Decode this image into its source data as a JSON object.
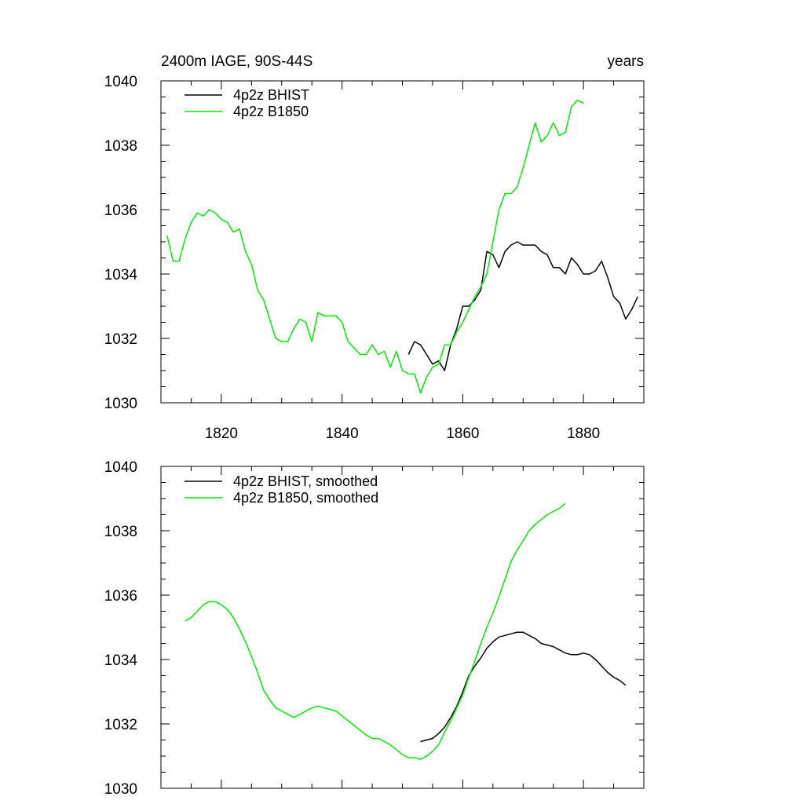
{
  "chart_data": [
    {
      "type": "line",
      "title": "2400m IAGE, 90S-44S",
      "right_title": "years",
      "xlim": [
        1810,
        1890
      ],
      "ylim": [
        1030,
        1040
      ],
      "x_ticks": [
        1820,
        1840,
        1860,
        1880
      ],
      "x_tick_labels": [
        "1820",
        "1840",
        "1860",
        "1880"
      ],
      "y_ticks": [
        1030,
        1032,
        1034,
        1036,
        1038,
        1040
      ],
      "y_tick_labels": [
        "1030",
        "1032",
        "1034",
        "1036",
        "1038",
        "1040"
      ],
      "legend_position": "top-left",
      "series": [
        {
          "name": "4p2z BHIST",
          "color": "#000000",
          "x": [
            1851,
            1852,
            1853,
            1854,
            1855,
            1856,
            1857,
            1858,
            1859,
            1860,
            1861,
            1862,
            1863,
            1864,
            1865,
            1866,
            1867,
            1868,
            1869,
            1870,
            1871,
            1872,
            1873,
            1874,
            1875,
            1876,
            1877,
            1878,
            1879,
            1880,
            1881,
            1882,
            1883,
            1884,
            1885,
            1886,
            1887,
            1888,
            1889
          ],
          "values": [
            1031.5,
            1031.9,
            1031.8,
            1031.5,
            1031.2,
            1031.3,
            1031.0,
            1031.8,
            1032.3,
            1033.0,
            1033.0,
            1033.2,
            1033.5,
            1034.7,
            1034.6,
            1034.2,
            1034.7,
            1034.9,
            1035.0,
            1034.9,
            1034.9,
            1034.9,
            1034.7,
            1034.6,
            1034.2,
            1034.2,
            1034.0,
            1034.5,
            1034.3,
            1034.0,
            1034.0,
            1034.1,
            1034.4,
            1033.9,
            1033.3,
            1033.1,
            1032.6,
            1032.9,
            1033.3
          ]
        },
        {
          "name": "4p2z B1850",
          "color": "#00ee00",
          "x": [
            1811,
            1812,
            1813,
            1814,
            1815,
            1816,
            1817,
            1818,
            1819,
            1820,
            1821,
            1822,
            1823,
            1824,
            1825,
            1826,
            1827,
            1828,
            1829,
            1830,
            1831,
            1832,
            1833,
            1834,
            1835,
            1836,
            1837,
            1838,
            1839,
            1840,
            1841,
            1842,
            1843,
            1844,
            1845,
            1846,
            1847,
            1848,
            1849,
            1850,
            1851,
            1852,
            1853,
            1854,
            1855,
            1856,
            1857,
            1858,
            1859,
            1860,
            1861,
            1862,
            1863,
            1864,
            1865,
            1866,
            1867,
            1868,
            1869,
            1870,
            1871,
            1872,
            1873,
            1874,
            1875,
            1876,
            1877,
            1878,
            1879,
            1880
          ],
          "values": [
            1035.2,
            1034.4,
            1034.4,
            1035.1,
            1035.6,
            1035.9,
            1035.8,
            1036.0,
            1035.9,
            1035.7,
            1035.6,
            1035.3,
            1035.4,
            1034.7,
            1034.3,
            1033.5,
            1033.2,
            1032.6,
            1032.0,
            1031.9,
            1031.9,
            1032.3,
            1032.6,
            1032.5,
            1031.9,
            1032.8,
            1032.7,
            1032.7,
            1032.7,
            1032.5,
            1031.9,
            1031.7,
            1031.5,
            1031.5,
            1031.8,
            1031.5,
            1031.6,
            1031.1,
            1031.6,
            1031.0,
            1030.9,
            1030.9,
            1030.3,
            1030.8,
            1031.1,
            1031.2,
            1031.8,
            1031.8,
            1032.2,
            1032.5,
            1032.9,
            1033.3,
            1033.6,
            1034.0,
            1035.0,
            1036.0,
            1036.5,
            1036.5,
            1036.7,
            1037.3,
            1038.0,
            1038.7,
            1038.1,
            1038.3,
            1038.7,
            1038.3,
            1038.4,
            1039.2,
            1039.4,
            1039.3
          ]
        }
      ]
    },
    {
      "type": "line",
      "title": "",
      "xlim": [
        1810,
        1890
      ],
      "ylim": [
        1030,
        1040
      ],
      "x_ticks": [
        1820,
        1840,
        1860,
        1880
      ],
      "y_ticks": [
        1030,
        1032,
        1034,
        1036,
        1038,
        1040
      ],
      "y_tick_labels": [
        "1030",
        "1032",
        "1034",
        "1036",
        "1038",
        "1040"
      ],
      "legend_position": "top-left",
      "series": [
        {
          "name": "4p2z BHIST, smoothed",
          "color": "#000000",
          "x": [
            1853,
            1854,
            1855,
            1856,
            1857,
            1858,
            1859,
            1860,
            1861,
            1862,
            1863,
            1864,
            1865,
            1866,
            1867,
            1868,
            1869,
            1870,
            1871,
            1872,
            1873,
            1874,
            1875,
            1876,
            1877,
            1878,
            1879,
            1880,
            1881,
            1882,
            1883,
            1884,
            1885,
            1886,
            1887
          ],
          "values": [
            1031.45,
            1031.5,
            1031.55,
            1031.7,
            1031.9,
            1032.2,
            1032.55,
            1033.0,
            1033.5,
            1033.8,
            1034.05,
            1034.35,
            1034.55,
            1034.7,
            1034.75,
            1034.8,
            1034.85,
            1034.85,
            1034.75,
            1034.65,
            1034.5,
            1034.45,
            1034.4,
            1034.3,
            1034.2,
            1034.15,
            1034.15,
            1034.2,
            1034.15,
            1034.0,
            1033.8,
            1033.6,
            1033.45,
            1033.35,
            1033.2
          ]
        },
        {
          "name": "4p2z B1850, smoothed",
          "color": "#00ee00",
          "x": [
            1814,
            1815,
            1816,
            1817,
            1818,
            1819,
            1820,
            1821,
            1822,
            1823,
            1824,
            1825,
            1826,
            1827,
            1828,
            1829,
            1830,
            1831,
            1832,
            1833,
            1834,
            1835,
            1836,
            1837,
            1838,
            1839,
            1840,
            1841,
            1842,
            1843,
            1844,
            1845,
            1846,
            1847,
            1848,
            1849,
            1850,
            1851,
            1852,
            1853,
            1854,
            1855,
            1856,
            1857,
            1858,
            1859,
            1860,
            1861,
            1862,
            1863,
            1864,
            1865,
            1866,
            1867,
            1868,
            1869,
            1870,
            1871,
            1872,
            1873,
            1874,
            1875,
            1876,
            1877
          ],
          "values": [
            1035.2,
            1035.3,
            1035.5,
            1035.7,
            1035.8,
            1035.8,
            1035.7,
            1035.55,
            1035.3,
            1034.95,
            1034.55,
            1034.1,
            1033.6,
            1033.05,
            1032.75,
            1032.5,
            1032.4,
            1032.3,
            1032.2,
            1032.3,
            1032.4,
            1032.5,
            1032.55,
            1032.5,
            1032.45,
            1032.4,
            1032.25,
            1032.1,
            1031.95,
            1031.8,
            1031.65,
            1031.55,
            1031.55,
            1031.45,
            1031.35,
            1031.2,
            1031.05,
            1030.95,
            1030.95,
            1030.9,
            1031.0,
            1031.15,
            1031.35,
            1031.75,
            1032.1,
            1032.5,
            1032.9,
            1033.45,
            1033.95,
            1034.5,
            1035.0,
            1035.45,
            1035.95,
            1036.5,
            1037.05,
            1037.4,
            1037.7,
            1038.0,
            1038.2,
            1038.35,
            1038.5,
            1038.6,
            1038.7,
            1038.85
          ]
        }
      ]
    }
  ]
}
